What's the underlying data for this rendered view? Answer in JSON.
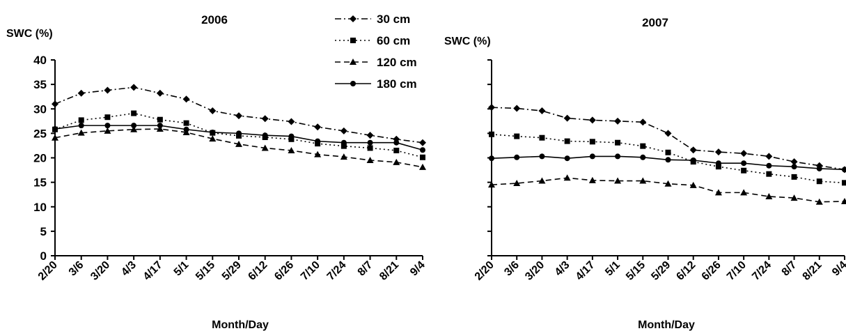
{
  "chart_data": [
    {
      "type": "line",
      "title": "2006",
      "ylabel": "SWC (%)",
      "xlabel": "Month/Day",
      "ylim": [
        0,
        40
      ],
      "yticks": [
        "0",
        "5",
        "10",
        "15",
        "20",
        "25",
        "30",
        "35",
        "40"
      ],
      "categories": [
        "2/20",
        "3/6",
        "3/20",
        "4/3",
        "4/17",
        "5/1",
        "5/15",
        "5/29",
        "6/12",
        "6/26",
        "7/10",
        "7/24",
        "8/7",
        "8/21",
        "9/4"
      ],
      "legend_position": "top-right",
      "series": [
        {
          "name": "30 cm",
          "marker": "diamond",
          "dash": "dashdot",
          "values": [
            31.0,
            33.2,
            33.8,
            34.4,
            33.2,
            32.0,
            29.6,
            28.6,
            28.0,
            27.4,
            26.3,
            25.5,
            24.6,
            23.8,
            23.1
          ]
        },
        {
          "name": "60 cm",
          "marker": "square",
          "dash": "dotted",
          "values": [
            25.8,
            27.7,
            28.3,
            29.1,
            27.8,
            27.1,
            25.1,
            24.5,
            24.2,
            23.8,
            22.9,
            22.4,
            22.0,
            21.5,
            20.1
          ]
        },
        {
          "name": "120 cm",
          "marker": "triangle",
          "dash": "dashed",
          "values": [
            24.1,
            25.1,
            25.5,
            25.8,
            25.9,
            25.2,
            23.9,
            22.8,
            22.0,
            21.5,
            20.7,
            20.2,
            19.5,
            19.1,
            18.1
          ]
        },
        {
          "name": "180 cm",
          "marker": "circle",
          "dash": "solid",
          "values": [
            25.9,
            26.6,
            26.6,
            26.6,
            26.6,
            25.8,
            25.2,
            25.0,
            24.6,
            24.4,
            23.4,
            23.1,
            23.1,
            23.1,
            21.6
          ]
        }
      ]
    },
    {
      "type": "line",
      "title": "2007",
      "ylabel": "SWC (%)",
      "xlabel": "Month/Day",
      "ylim": [
        0,
        40
      ],
      "categories": [
        "2/20",
        "3/6",
        "3/20",
        "4/3",
        "4/17",
        "5/1",
        "5/15",
        "5/29",
        "6/12",
        "6/26",
        "7/10",
        "7/24",
        "8/7",
        "8/21",
        "9/4"
      ],
      "series": [
        {
          "name": "30 cm",
          "marker": "diamond",
          "dash": "dashdot",
          "values": [
            30.3,
            30.1,
            29.6,
            28.1,
            27.7,
            27.5,
            27.3,
            25.0,
            21.6,
            21.2,
            20.9,
            20.3,
            19.2,
            18.4,
            17.6
          ]
        },
        {
          "name": "60 cm",
          "marker": "square",
          "dash": "dotted",
          "values": [
            24.8,
            24.4,
            24.1,
            23.4,
            23.3,
            23.1,
            22.4,
            21.1,
            19.2,
            18.2,
            17.4,
            16.7,
            16.1,
            15.2,
            14.9
          ]
        },
        {
          "name": "120 cm",
          "marker": "triangle",
          "dash": "dashed",
          "values": [
            14.5,
            14.8,
            15.3,
            15.9,
            15.4,
            15.3,
            15.3,
            14.7,
            14.4,
            12.9,
            12.9,
            12.1,
            11.8,
            11.0,
            11.1
          ]
        },
        {
          "name": "180 cm",
          "marker": "circle",
          "dash": "solid",
          "values": [
            19.9,
            20.1,
            20.3,
            19.9,
            20.3,
            20.3,
            20.1,
            19.6,
            19.5,
            18.9,
            18.9,
            18.4,
            18.2,
            17.8,
            17.6
          ]
        }
      ]
    }
  ]
}
